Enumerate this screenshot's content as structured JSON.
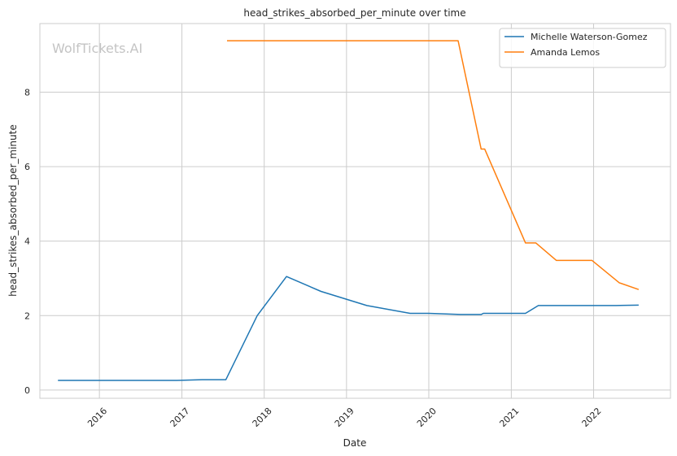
{
  "watermark": "WolfTickets.AI",
  "chart_data": {
    "type": "line",
    "title": "head_strikes_absorbed_per_minute over time",
    "xlabel": "Date",
    "ylabel": "head_strikes_absorbed_per_minute",
    "x_ticks": [
      "2016",
      "2017",
      "2018",
      "2019",
      "2020",
      "2021",
      "2022"
    ],
    "y_ticks": [
      0,
      2,
      4,
      6,
      8
    ],
    "xlim": [
      "2015-04-12",
      "2022-12-08"
    ],
    "ylim": [
      -0.22,
      9.84
    ],
    "grid": true,
    "legend_position": "top-right",
    "series": [
      {
        "name": "Michelle Waterson-Gomez",
        "color": "#1f77b4",
        "points": [
          {
            "x": "2015-07-01",
            "y": 0.26
          },
          {
            "x": "2016-12-10",
            "y": 0.26
          },
          {
            "x": "2017-04-01",
            "y": 0.28
          },
          {
            "x": "2017-07-15",
            "y": 0.28
          },
          {
            "x": "2017-12-01",
            "y": 2.0
          },
          {
            "x": "2018-04-10",
            "y": 3.05
          },
          {
            "x": "2018-09-10",
            "y": 2.65
          },
          {
            "x": "2019-04-01",
            "y": 2.27
          },
          {
            "x": "2019-10-10",
            "y": 2.06
          },
          {
            "x": "2020-01-01",
            "y": 2.06
          },
          {
            "x": "2020-05-20",
            "y": 2.03
          },
          {
            "x": "2020-08-20",
            "y": 2.03
          },
          {
            "x": "2020-08-30",
            "y": 2.06
          },
          {
            "x": "2021-03-05",
            "y": 2.06
          },
          {
            "x": "2021-05-01",
            "y": 2.27
          },
          {
            "x": "2022-04-10",
            "y": 2.27
          },
          {
            "x": "2022-07-20",
            "y": 2.28
          }
        ]
      },
      {
        "name": "Amanda Lemos",
        "color": "#ff7f0e",
        "points": [
          {
            "x": "2017-07-20",
            "y": 9.38
          },
          {
            "x": "2020-05-10",
            "y": 9.38
          },
          {
            "x": "2020-08-20",
            "y": 6.47
          },
          {
            "x": "2020-09-05",
            "y": 6.47
          },
          {
            "x": "2021-03-05",
            "y": 3.95
          },
          {
            "x": "2021-04-20",
            "y": 3.95
          },
          {
            "x": "2021-07-20",
            "y": 3.48
          },
          {
            "x": "2021-12-25",
            "y": 3.48
          },
          {
            "x": "2022-04-25",
            "y": 2.88
          },
          {
            "x": "2022-07-20",
            "y": 2.7
          }
        ]
      }
    ]
  }
}
